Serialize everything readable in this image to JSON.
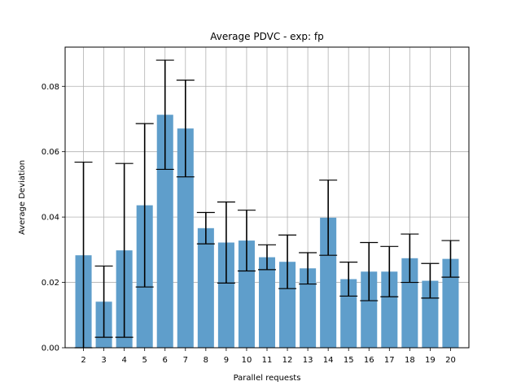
{
  "chart_data": {
    "type": "bar",
    "title": "Average PDVC - exp: fp",
    "xlabel": "Parallel requests",
    "ylabel": "Average Deviation",
    "categories": [
      "2",
      "3",
      "4",
      "5",
      "6",
      "7",
      "8",
      "9",
      "10",
      "11",
      "12",
      "13",
      "14",
      "15",
      "16",
      "17",
      "18",
      "19",
      "20"
    ],
    "values": [
      0.0283,
      0.0141,
      0.0298,
      0.0436,
      0.0713,
      0.0671,
      0.0366,
      0.0322,
      0.0328,
      0.0277,
      0.0263,
      0.0243,
      0.0398,
      0.021,
      0.0233,
      0.0233,
      0.0274,
      0.0205,
      0.0272
    ],
    "error": [
      0.0285,
      0.0109,
      0.0266,
      0.025,
      0.0167,
      0.0148,
      0.0048,
      0.0124,
      0.0093,
      0.0038,
      0.0082,
      0.0048,
      0.0115,
      0.0052,
      0.0089,
      0.0077,
      0.0074,
      0.0053,
      0.0056
    ],
    "ylim": [
      0,
      0.092
    ],
    "yticks": [
      0.0,
      0.02,
      0.04,
      0.06,
      0.08
    ],
    "ytick_labels": [
      "0.00",
      "0.02",
      "0.04",
      "0.06",
      "0.08"
    ],
    "grid": true,
    "bar_color": "#5f9ecb",
    "error_color": "#000000"
  }
}
